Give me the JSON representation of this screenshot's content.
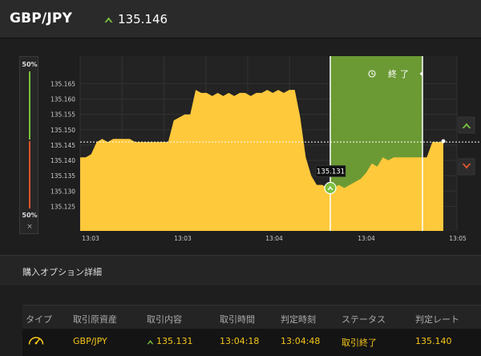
{
  "header": {
    "pair": "GBP/JPY",
    "price": "135.146",
    "trend_icon": "up-arrow-icon",
    "trend_color": "#7ac13d"
  },
  "left_panel": {
    "top_pct": "50%",
    "bottom_pct": "50%",
    "close": "×",
    "up_color": "#7ac13d",
    "down_color": "#e0532c"
  },
  "chart": {
    "end_label": "終了",
    "entry_label": "135.131",
    "fill_color": "#ffc93c",
    "zone_color": "#6b9a34"
  },
  "chart_data": {
    "type": "area",
    "title": "",
    "xlabel": "",
    "ylabel": "",
    "ylim": [
      135.117,
      135.174
    ],
    "y_ticks": [
      "135.165",
      "135.160",
      "135.155",
      "135.150",
      "135.145",
      "135.140",
      "135.135",
      "135.130",
      "135.125"
    ],
    "x_ticks": [
      "13:03",
      "13:03",
      "13:04",
      "13:04",
      "13:05"
    ],
    "series": [
      {
        "values": [
          135.141,
          135.141,
          135.142,
          135.146,
          135.147,
          135.146,
          135.147,
          135.147,
          135.147,
          135.147,
          135.146,
          135.146,
          135.146,
          135.146,
          135.146,
          135.146,
          135.146,
          135.153,
          135.154,
          135.155,
          135.155,
          135.163,
          135.162,
          135.162,
          135.161,
          135.162,
          135.161,
          135.162,
          135.161,
          135.162,
          135.162,
          135.161,
          135.162,
          135.162,
          135.163,
          135.162,
          135.163,
          135.162,
          135.163,
          135.163,
          135.154,
          135.141,
          135.135,
          135.132,
          135.132,
          135.131,
          135.131,
          135.132,
          135.131,
          135.132,
          135.133,
          135.134,
          135.136,
          135.139,
          135.138,
          135.141,
          135.14,
          135.141,
          135.141,
          135.141,
          135.141,
          135.141,
          135.141,
          135.141,
          135.146,
          135.146,
          135.146
        ]
      }
    ],
    "reference_level": 135.146,
    "entry_value": 135.131,
    "grid": true
  },
  "section": {
    "title": "購入オプション詳細"
  },
  "table": {
    "headers": [
      "タイプ",
      "取引原資産",
      "取引内容",
      "取引時間",
      "判定時刻",
      "ステータス",
      "判定レート"
    ],
    "row": {
      "type_icon": "gauge-icon",
      "asset": "GBP/JPY",
      "content": "135.131",
      "trade_time": "13:04:18",
      "judge_time": "13:04:48",
      "status": "取引終了",
      "rate": "135.140"
    }
  }
}
